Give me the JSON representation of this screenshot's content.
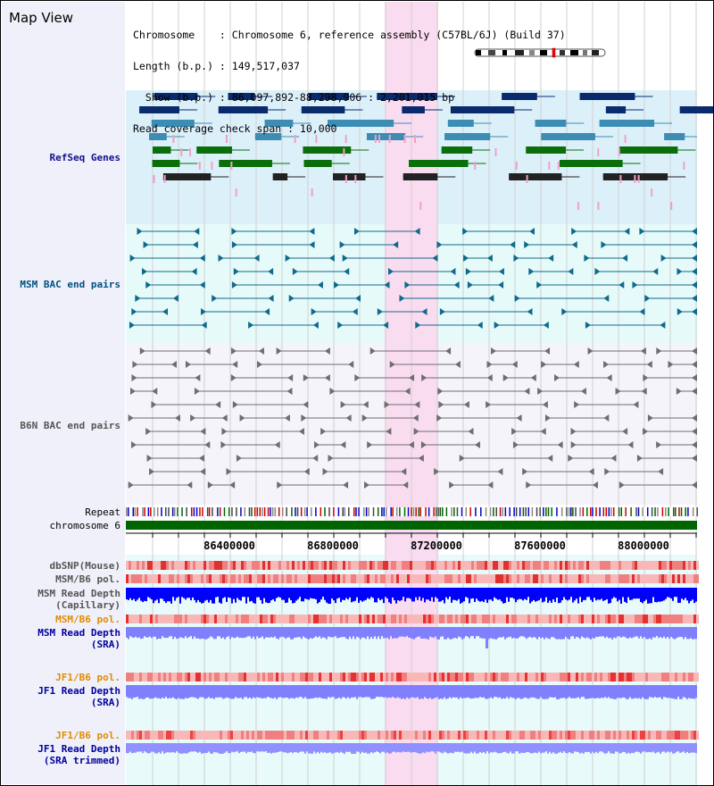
{
  "view_title": "Map View",
  "header": {
    "lines": [
      "Chromosome    : Chromosome 6, reference assembly (C57BL/6J) (Build 37)",
      "Length (b.p.) : 149,517,037",
      "  Show (b.p.) : 86,097,892-88,298,906 : 2,201,015 bp",
      "Read coverage check span : 10,000"
    ]
  },
  "tracks": {
    "refseq": "RefSeq Genes",
    "msm_bac": "MSM BAC end pairs",
    "b6n_bac": "B6N BAC end pairs",
    "repeat": "Repeat",
    "chromosome": "chromosome 6",
    "dbsnp": "dbSNP(Mouse)",
    "msm_b6_pol_1": "MSM/B6 pol.",
    "msm_read_depth_cap": [
      "MSM Read Depth",
      "(Capillary)"
    ],
    "msm_b6_pol_2": "MSM/B6 pol.",
    "msm_read_depth_sra": [
      "MSM Read Depth",
      "(SRA)"
    ],
    "jf1_b6_pol_1": "JF1/B6 pol.",
    "jf1_read_depth_sra": [
      "JF1 Read Depth",
      "(SRA)"
    ],
    "jf1_b6_pol_2": "JF1/B6 pol.",
    "jf1_read_depth_trim": [
      "JF1 Read Depth",
      "(SRA trimmed)"
    ]
  },
  "ruler": {
    "ticks": [
      "86400000",
      "86800000",
      "87200000",
      "87600000",
      "88000000"
    ]
  },
  "colors": {
    "highlight": "#fadcf0",
    "refseq_bg": "#dcf0fa",
    "gene_navy": "#0a2a6e",
    "gene_blue": "#3c8cb4",
    "gene_green": "#0a6e0a",
    "gene_pink": "#f0a0c8",
    "bac_teal": "#106a8c",
    "bac_gray": "#6e6e6e",
    "chrom_green": "#006400",
    "snp_red": "#e85050",
    "depth_blue": "#0000ff",
    "depth_lavender": "#8080ff"
  }
}
